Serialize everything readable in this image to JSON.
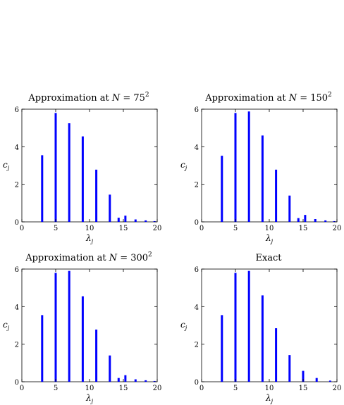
{
  "chart_data": [
    {
      "type": "bar",
      "title": "Approximation at N = 75²",
      "title_base": "Approximation at ",
      "title_var": "N",
      "title_rest": " = 75",
      "title_sup": "2",
      "xlabel": "λ",
      "xlabel_sub": "j",
      "ylabel": "c",
      "ylabel_sub": "j",
      "xlim": [
        0,
        20
      ],
      "ylim": [
        0,
        6
      ],
      "xticks": [
        "0",
        "5",
        "10",
        "15",
        "20"
      ],
      "yticks": [
        "0",
        "2",
        "4",
        "6"
      ],
      "x": [
        3,
        5,
        7,
        9,
        11,
        13,
        14.3,
        15.3,
        16.8,
        18.3,
        19.6
      ],
      "values": [
        3.55,
        5.8,
        5.25,
        4.55,
        2.78,
        1.45,
        0.22,
        0.33,
        0.13,
        0.08,
        0.04
      ],
      "color": "#0000ff",
      "grid": false
    },
    {
      "type": "bar",
      "title": "Approximation at N = 150²",
      "title_base": "Approximation at ",
      "title_var": "N",
      "title_rest": " = 150",
      "title_sup": "2",
      "xlabel": "λ",
      "xlabel_sub": "j",
      "ylabel": "c",
      "ylabel_sub": "j",
      "xlim": [
        0,
        20
      ],
      "ylim": [
        0,
        6
      ],
      "xticks": [
        "0",
        "5",
        "10",
        "15",
        "20"
      ],
      "yticks": [
        "0",
        "2",
        "4",
        "6"
      ],
      "x": [
        3,
        5,
        7,
        9,
        11,
        13,
        14.3,
        15.3,
        16.8,
        18.3,
        19.6
      ],
      "values": [
        3.52,
        5.8,
        5.88,
        4.6,
        2.78,
        1.4,
        0.2,
        0.37,
        0.15,
        0.08,
        0.04
      ],
      "color": "#0000ff",
      "grid": false
    },
    {
      "type": "bar",
      "title": "Approximation at N = 300²",
      "title_base": "Approximation at ",
      "title_var": "N",
      "title_rest": " = 300",
      "title_sup": "2",
      "xlabel": "λ",
      "xlabel_sub": "j",
      "ylabel": "c",
      "ylabel_sub": "j",
      "xlim": [
        0,
        20
      ],
      "ylim": [
        0,
        6
      ],
      "xticks": [
        "0",
        "5",
        "10",
        "15",
        "20"
      ],
      "yticks": [
        "0",
        "2",
        "4",
        "6"
      ],
      "x": [
        3,
        5,
        7,
        9,
        11,
        13,
        14.3,
        15.3,
        16.8,
        18.3,
        19.6
      ],
      "values": [
        3.55,
        5.8,
        5.9,
        4.55,
        2.78,
        1.4,
        0.2,
        0.35,
        0.13,
        0.08,
        0.04
      ],
      "color": "#0000ff",
      "grid": false
    },
    {
      "type": "bar",
      "title": "Exact",
      "title_base": "Exact",
      "title_var": "",
      "title_rest": "",
      "title_sup": "",
      "xlabel": "λ",
      "xlabel_sub": "j",
      "ylabel": "c",
      "ylabel_sub": "j",
      "xlim": [
        0,
        20
      ],
      "ylim": [
        0,
        6
      ],
      "xticks": [
        "0",
        "5",
        "10",
        "15",
        "20"
      ],
      "yticks": [
        "0",
        "2",
        "4",
        "6"
      ],
      "x": [
        3,
        5,
        7,
        9,
        11,
        13,
        15,
        17,
        19
      ],
      "values": [
        3.55,
        5.8,
        5.9,
        4.6,
        2.85,
        1.42,
        0.58,
        0.2,
        0.06
      ],
      "color": "#0000ff",
      "grid": false
    }
  ]
}
